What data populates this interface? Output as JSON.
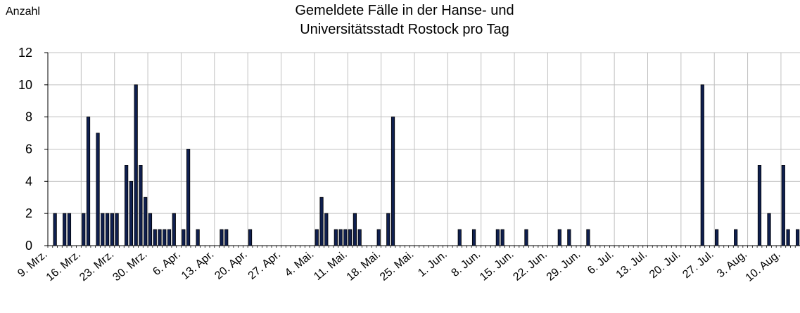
{
  "chart_data": {
    "type": "bar",
    "title": "Gemeldete Fälle in der Hanse- und Universitätsstadt Rostock pro Tag",
    "y_label": "Anzahl",
    "color": "#0f1f4f",
    "grid": true,
    "ylim": [
      0,
      12
    ],
    "yticks": [
      0,
      2,
      4,
      6,
      8,
      10,
      12
    ],
    "categories": [
      "9. Mrz.",
      null,
      null,
      null,
      null,
      null,
      null,
      "16. Mrz.",
      null,
      null,
      null,
      null,
      null,
      null,
      "23. Mrz.",
      null,
      null,
      null,
      null,
      null,
      null,
      "30. Mrz.",
      null,
      null,
      null,
      null,
      null,
      null,
      "6. Apr.",
      null,
      null,
      null,
      null,
      null,
      null,
      "13. Apr.",
      null,
      null,
      null,
      null,
      null,
      null,
      "20. Apr.",
      null,
      null,
      null,
      null,
      null,
      null,
      "27. Apr.",
      null,
      null,
      null,
      null,
      null,
      null,
      "4. Mai.",
      null,
      null,
      null,
      null,
      null,
      null,
      "11. Mai.",
      null,
      null,
      null,
      null,
      null,
      null,
      "18. Mai.",
      null,
      null,
      null,
      null,
      null,
      null,
      "25. Mai.",
      null,
      null,
      null,
      null,
      null,
      null,
      "1. Jun.",
      null,
      null,
      null,
      null,
      null,
      null,
      "8. Jun.",
      null,
      null,
      null,
      null,
      null,
      null,
      "15. Jun.",
      null,
      null,
      null,
      null,
      null,
      null,
      "22. Jun.",
      null,
      null,
      null,
      null,
      null,
      null,
      "29. Jun.",
      null,
      null,
      null,
      null,
      null,
      null,
      "6. Jul.",
      null,
      null,
      null,
      null,
      null,
      null,
      "13. Jul.",
      null,
      null,
      null,
      null,
      null,
      null,
      "20. Jul.",
      null,
      null,
      null,
      null,
      null,
      null,
      "27. Jul.",
      null,
      null,
      null,
      null,
      null,
      null,
      "3. Aug.",
      null,
      null,
      null,
      null,
      null,
      null,
      "10. Aug.",
      null,
      null,
      null
    ],
    "values": [
      0,
      2,
      0,
      2,
      2,
      0,
      0,
      2,
      8,
      0,
      7,
      2,
      2,
      2,
      2,
      0,
      5,
      4,
      10,
      5,
      3,
      2,
      1,
      1,
      1,
      1,
      2,
      0,
      1,
      6,
      0,
      1,
      0,
      0,
      0,
      0,
      1,
      1,
      0,
      0,
      0,
      0,
      1,
      0,
      0,
      0,
      0,
      0,
      0,
      0,
      0,
      0,
      0,
      0,
      0,
      0,
      1,
      3,
      2,
      0,
      1,
      1,
      1,
      1,
      2,
      1,
      0,
      0,
      0,
      1,
      0,
      2,
      8,
      0,
      0,
      0,
      0,
      0,
      0,
      0,
      0,
      0,
      0,
      0,
      0,
      0,
      1,
      0,
      0,
      1,
      0,
      0,
      0,
      0,
      1,
      1,
      0,
      0,
      0,
      0,
      1,
      0,
      0,
      0,
      0,
      0,
      0,
      1,
      0,
      1,
      0,
      0,
      0,
      1,
      0,
      0,
      0,
      0,
      0,
      0,
      0,
      0,
      0,
      0,
      0,
      0,
      0,
      0,
      0,
      0,
      0,
      0,
      0,
      0,
      0,
      0,
      0,
      10,
      0,
      0,
      1,
      0,
      0,
      0,
      1,
      0,
      0,
      0,
      0,
      5,
      0,
      2,
      0,
      0,
      5,
      1,
      0,
      1
    ]
  }
}
